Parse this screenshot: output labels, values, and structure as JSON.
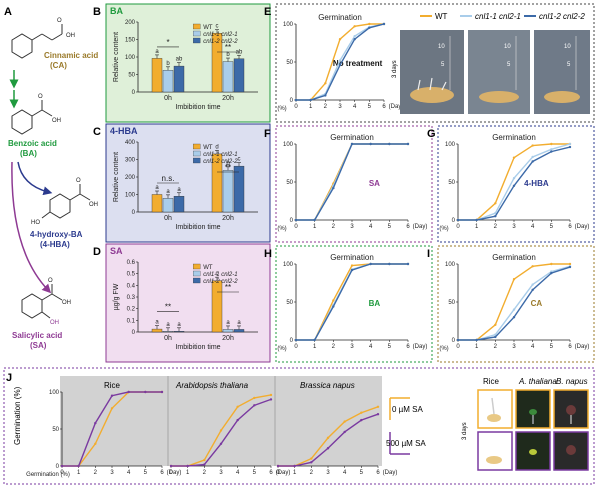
{
  "colors": {
    "wt": "#f2ad2f",
    "cnl1": "#a9cdea",
    "cnl2": "#3c6aa8",
    "ba": "#1f9a3e",
    "hba": "#2b3a8e",
    "sa": "#8e3a93",
    "ca": "#9a7a2a",
    "sa0": "#f2ad2f",
    "sa500": "#7a3aa0"
  },
  "panel_letters": {
    "A": "A",
    "B": "B",
    "C": "C",
    "D": "D",
    "E": "E",
    "F": "F",
    "G": "G",
    "H": "H",
    "I": "I",
    "J": "J"
  },
  "pathway": {
    "ca": {
      "l1": "Cinnamic acid",
      "l2": "(CA)",
      "chem": "OH",
      "o": "O"
    },
    "ba": {
      "l1": "Benzoic acid",
      "l2": "(BA)",
      "chem": "OH",
      "o": "O"
    },
    "hba": {
      "l1": "4-hydroxy-BA",
      "l2": "(4-HBA)",
      "chem": "OH",
      "o": "O",
      "ho": "HO"
    },
    "sa": {
      "l1": "Salicylic acid",
      "l2": "(SA)",
      "chem": "OH",
      "o": "O",
      "oh": "OH"
    }
  },
  "legend": {
    "wt": "WT",
    "cnl1": "cnl1-1 cnl2-1",
    "cnl2": "cnl1-2 cnl2-2"
  },
  "bar_text": {
    "xlabel": "Imbibition time",
    "rel": "Relative content",
    "ugfw": "µg/g FW",
    "sig_star": "*",
    "sig_2": "**",
    "ns": "n.s."
  },
  "photo_caption": "3 days",
  "photo_ruler": [
    "10",
    "5"
  ],
  "J_text": {
    "ylabel": "Germination (%)",
    "rice": "Rice",
    "ath": "Arabidopsis thaliana",
    "bna": "Brassica napus",
    "leg0": "0 µM SA",
    "leg500": "500 µM SA",
    "photo_days": "3 days",
    "cols": [
      "Rice",
      "A. thaliana",
      "B. napus"
    ]
  },
  "chart_data": [
    {
      "panel": "B",
      "type": "bar",
      "title": "BA",
      "categories": [
        "0h",
        "20h"
      ],
      "ylabel": "Relative content",
      "xlabel": "Imbibition time",
      "ylim": [
        0,
        200
      ],
      "yticks": [
        0,
        50,
        100,
        150,
        200
      ],
      "series": [
        {
          "name": "WT",
          "values": [
            96,
            168
          ],
          "letters": [
            "a",
            "c"
          ]
        },
        {
          "name": "cnl1-1 cnl2-1",
          "values": [
            62,
            87
          ],
          "letters": [
            "b",
            "b"
          ]
        },
        {
          "name": "cnl1-2 cnl2-2",
          "values": [
            74,
            95
          ],
          "letters": [
            "ab",
            "ab"
          ]
        }
      ],
      "annotations": [
        "*",
        "**"
      ]
    },
    {
      "panel": "C",
      "type": "bar",
      "title": "4-HBA",
      "categories": [
        "0h",
        "20h"
      ],
      "ylabel": "Relative content",
      "xlabel": "Imbibition time",
      "ylim": [
        0,
        400
      ],
      "yticks": [
        0,
        100,
        200,
        300,
        400
      ],
      "series": [
        {
          "name": "WT",
          "values": [
            100,
            332
          ],
          "letters": [
            "a",
            "d"
          ]
        },
        {
          "name": "cnl1-1 cnl2-1",
          "values": [
            78,
            238
          ],
          "letters": [
            "a",
            "b"
          ]
        },
        {
          "name": "cnl1-2 cnl2-2",
          "values": [
            90,
            262
          ],
          "letters": [
            "a",
            "c"
          ]
        }
      ],
      "annotations": [
        "n.s.",
        "**"
      ]
    },
    {
      "panel": "D",
      "type": "bar",
      "title": "SA",
      "categories": [
        "0h",
        "20h"
      ],
      "ylabel": "µg/g FW",
      "xlabel": "Imbibition time",
      "ylim": [
        0,
        0.6
      ],
      "yticks": [
        0,
        0.1,
        0.2,
        0.3,
        0.4,
        0.5,
        0.6
      ],
      "series": [
        {
          "name": "WT",
          "values": [
            0.025,
            0.44
          ],
          "letters": [
            "a",
            "c"
          ]
        },
        {
          "name": "cnl1-1 cnl2-1",
          "values": [
            0.006,
            0.022
          ],
          "letters": [
            "a",
            "a"
          ]
        },
        {
          "name": "cnl1-2 cnl2-2",
          "values": [
            0.006,
            0.022
          ],
          "letters": [
            "a",
            "a"
          ]
        }
      ],
      "annotations": [
        "**",
        "**"
      ]
    },
    {
      "panel": "E",
      "type": "line",
      "title": "Germination",
      "label": "No treatment",
      "ylabel": "(%)",
      "xlabel": "(Day)",
      "x": [
        0,
        1,
        2,
        3,
        4,
        5,
        6
      ],
      "xlim": [
        0,
        6
      ],
      "ylim": [
        0,
        100
      ],
      "yticks": [
        0,
        25,
        50,
        75,
        100
      ],
      "series": [
        {
          "name": "WT",
          "values": [
            0,
            0,
            22,
            80,
            97,
            100,
            100
          ]
        },
        {
          "name": "cnl1-1 cnl2-1",
          "values": [
            0,
            0,
            8,
            52,
            84,
            96,
            100
          ]
        },
        {
          "name": "cnl1-2 cnl2-2",
          "values": [
            0,
            0,
            6,
            46,
            80,
            95,
            100
          ]
        }
      ]
    },
    {
      "panel": "F",
      "type": "line",
      "title": "Germination",
      "label": "SA",
      "ylabel": "(%)",
      "xlabel": "(Day)",
      "x": [
        0,
        1,
        2,
        3,
        4,
        5,
        6
      ],
      "xlim": [
        0,
        6
      ],
      "ylim": [
        0,
        100
      ],
      "yticks": [
        0,
        25,
        50,
        75,
        100
      ],
      "series": [
        {
          "name": "WT",
          "values": [
            0,
            0,
            48,
            100,
            100,
            100,
            100
          ]
        },
        {
          "name": "cnl1-1 cnl2-1",
          "values": [
            0,
            0,
            45,
            100,
            100,
            100,
            100
          ]
        },
        {
          "name": "cnl1-2 cnl2-2",
          "values": [
            0,
            0,
            42,
            100,
            100,
            100,
            100
          ]
        }
      ]
    },
    {
      "panel": "G",
      "type": "line",
      "title": "Germination",
      "label": "4-HBA",
      "ylabel": "(%)",
      "xlabel": "(Day)",
      "x": [
        0,
        1,
        2,
        3,
        4,
        5,
        6
      ],
      "xlim": [
        0,
        6
      ],
      "ylim": [
        0,
        100
      ],
      "yticks": [
        0,
        25,
        50,
        75,
        100
      ],
      "series": [
        {
          "name": "WT",
          "values": [
            0,
            0,
            22,
            82,
            98,
            100,
            100
          ]
        },
        {
          "name": "cnl1-1 cnl2-1",
          "values": [
            0,
            0,
            9,
            55,
            83,
            93,
            100
          ]
        },
        {
          "name": "cnl1-2 cnl2-2",
          "values": [
            0,
            0,
            5,
            45,
            77,
            90,
            96
          ]
        }
      ]
    },
    {
      "panel": "H",
      "type": "line",
      "title": "Germination",
      "label": "BA",
      "ylabel": "(%)",
      "xlabel": "(Day)",
      "x": [
        0,
        1,
        2,
        3,
        4,
        5,
        6
      ],
      "xlim": [
        0,
        6
      ],
      "ylim": [
        0,
        100
      ],
      "yticks": [
        0,
        25,
        50,
        75,
        100
      ],
      "series": [
        {
          "name": "WT",
          "values": [
            0,
            0,
            52,
            98,
            100,
            100,
            100
          ]
        },
        {
          "name": "cnl1-1 cnl2-1",
          "values": [
            0,
            0,
            46,
            93,
            100,
            100,
            100
          ]
        },
        {
          "name": "cnl1-2 cnl2-2",
          "values": [
            0,
            0,
            44,
            92,
            100,
            100,
            100
          ]
        }
      ]
    },
    {
      "panel": "I",
      "type": "line",
      "title": "Germination",
      "label": "CA",
      "ylabel": "(%)",
      "xlabel": "(Day)",
      "x": [
        0,
        1,
        2,
        3,
        4,
        5,
        6
      ],
      "xlim": [
        0,
        6
      ],
      "ylim": [
        0,
        100
      ],
      "yticks": [
        0,
        25,
        50,
        75,
        100
      ],
      "series": [
        {
          "name": "WT",
          "values": [
            0,
            0,
            20,
            80,
            97,
            100,
            100
          ]
        },
        {
          "name": "cnl1-1 cnl2-1",
          "values": [
            0,
            0,
            7,
            40,
            73,
            90,
            97
          ]
        },
        {
          "name": "cnl1-2 cnl2-2",
          "values": [
            0,
            0,
            4,
            30,
            66,
            88,
            96
          ]
        }
      ]
    },
    {
      "panel": "J",
      "type": "line",
      "title": "Rice",
      "ylabel": "Germination (%)",
      "xlabel": "(Day)",
      "x": [
        0,
        1,
        2,
        3,
        4,
        5,
        6
      ],
      "xlim": [
        0,
        6
      ],
      "ylim": [
        0,
        100
      ],
      "yticks": [
        0,
        25,
        50,
        75,
        100
      ],
      "series": [
        {
          "name": "0 µM SA",
          "values": [
            0,
            0,
            30,
            78,
            100,
            100,
            100
          ]
        },
        {
          "name": "500 µM SA",
          "values": [
            0,
            0,
            58,
            95,
            100,
            100,
            100
          ]
        }
      ]
    },
    {
      "panel": "J",
      "type": "line",
      "title": "Arabidopsis thaliana",
      "xlabel": "(Day)",
      "x": [
        0,
        1,
        2,
        3,
        4,
        5,
        6
      ],
      "xlim": [
        0,
        6
      ],
      "ylim": [
        0,
        100
      ],
      "series": [
        {
          "name": "0 µM SA",
          "values": [
            0,
            0,
            8,
            48,
            80,
            92,
            96
          ]
        },
        {
          "name": "500 µM SA",
          "values": [
            0,
            0,
            2,
            30,
            62,
            82,
            90
          ]
        }
      ]
    },
    {
      "panel": "J",
      "type": "line",
      "title": "Brassica napus",
      "xlabel": "(Day)",
      "x": [
        0,
        1,
        2,
        3,
        4,
        5,
        6
      ],
      "xlim": [
        0,
        6
      ],
      "ylim": [
        0,
        100
      ],
      "series": [
        {
          "name": "0 µM SA",
          "values": [
            0,
            0,
            10,
            38,
            60,
            72,
            80
          ]
        },
        {
          "name": "500 µM SA",
          "values": [
            0,
            0,
            5,
            24,
            46,
            62,
            70
          ]
        }
      ]
    }
  ]
}
